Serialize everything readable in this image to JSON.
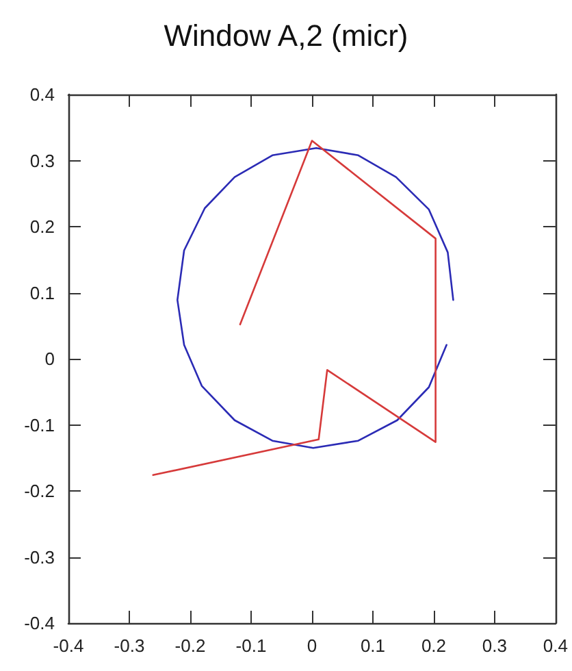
{
  "chart_data": {
    "type": "line",
    "title": "Window A,2 (micr)",
    "marker": "none",
    "line_style": "solid",
    "grid": false,
    "xlim": [
      -0.4,
      0.4
    ],
    "xticks": [
      -0.4,
      -0.3,
      -0.2,
      -0.1,
      0,
      0.1,
      0.2,
      0.3,
      0.4
    ],
    "ylim": [
      -0.4,
      0.4
    ],
    "yticks": [
      -0.4,
      -0.3,
      -0.2,
      -0.1,
      0,
      0.1,
      0.2,
      0.3,
      0.4
    ],
    "series": [
      {
        "color": "#2b2bb5",
        "x": [
          0.232,
          0.223,
          0.192,
          0.138,
          0.076,
          0.007,
          -0.065,
          -0.127,
          -0.176,
          -0.21,
          -0.221,
          -0.21,
          -0.181,
          -0.127,
          -0.065,
          0.002,
          0.076,
          0.14,
          0.192,
          0.221
        ],
        "values": [
          0.089,
          0.161,
          0.226,
          0.275,
          0.308,
          0.319,
          0.308,
          0.275,
          0.228,
          0.164,
          0.089,
          0.021,
          -0.041,
          -0.093,
          -0.124,
          -0.135,
          -0.124,
          -0.093,
          -0.043,
          0.021
        ]
      },
      {
        "color": "#d63a3a",
        "x": [
          -0.118,
          0,
          0.203,
          0.203,
          0.025,
          0.011,
          -0.261
        ],
        "values": [
          0.052,
          0.33,
          0.182,
          -0.126,
          -0.017,
          -0.122,
          -0.176
        ]
      }
    ]
  }
}
